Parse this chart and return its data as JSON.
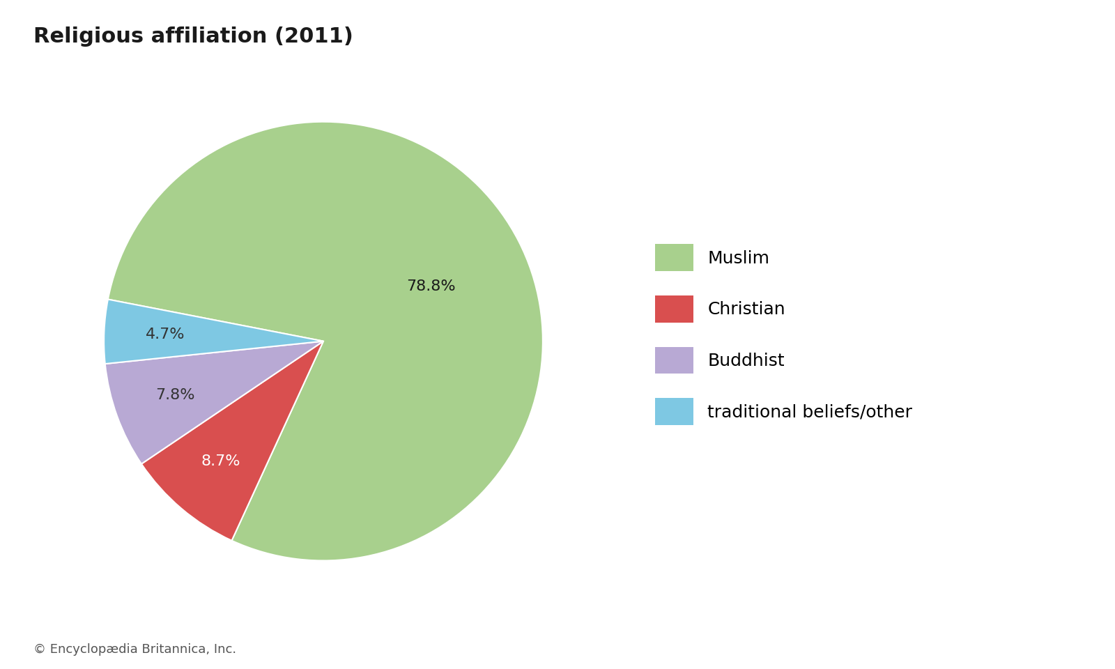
{
  "title": "Religious affiliation (2011)",
  "labels": [
    "Muslim",
    "Christian",
    "Buddhist",
    "traditional beliefs/other"
  ],
  "values": [
    78.8,
    8.7,
    7.8,
    4.7
  ],
  "colors": [
    "#a8d08d",
    "#d94f4f",
    "#b8a9d4",
    "#7ec8e3"
  ],
  "text_colors": [
    "#1a1a1a",
    "#ffffff",
    "#333333",
    "#333333"
  ],
  "pct_labels": [
    "78.8%",
    "8.7%",
    "7.8%",
    "4.7%"
  ],
  "title_fontsize": 22,
  "pct_fontsize": 16,
  "legend_fontsize": 18,
  "copyright": "© Encyclopædia Britannica, Inc.",
  "copyright_fontsize": 13,
  "background_color": "#ffffff",
  "startangle": 169
}
